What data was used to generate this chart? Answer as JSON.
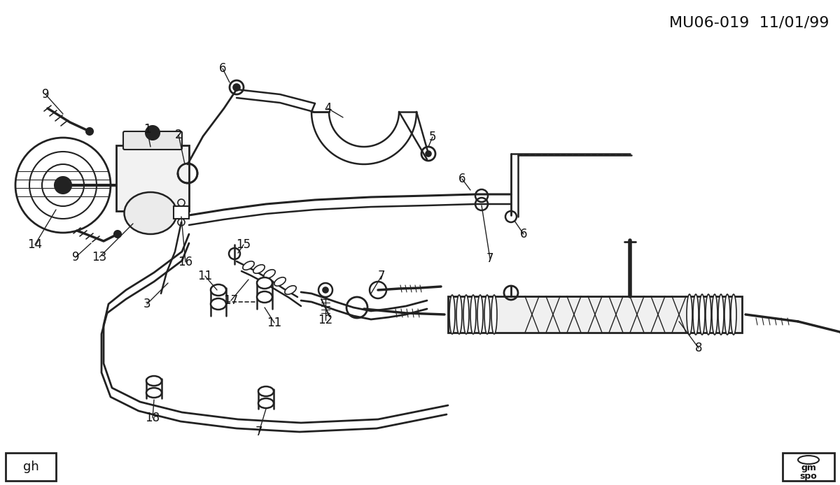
{
  "title": "MU06-019  11/01/99",
  "bg_color": "#ffffff",
  "line_color": "#222222",
  "text_color": "#111111",
  "title_fontsize": 16,
  "label_fontsize": 12,
  "gh_text": "gh",
  "gm_line1": "gm",
  "gm_line2": "spo",
  "border_color": "#000000"
}
